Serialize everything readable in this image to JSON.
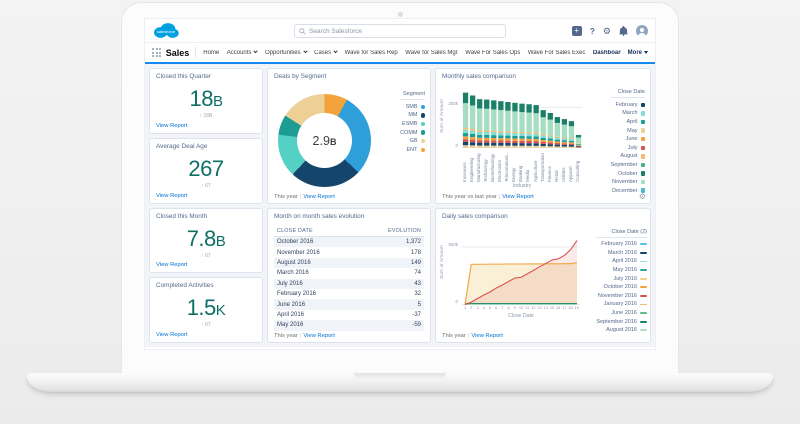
{
  "ui": {
    "sep": "|"
  },
  "header": {
    "logo_text": "salesforce",
    "search": {
      "placeholder": "Search Salesforce"
    },
    "icons": [
      "add",
      "help",
      "settings",
      "notifications",
      "avatar"
    ]
  },
  "nav": {
    "app_name": "Sales",
    "items": [
      {
        "label": "Home"
      },
      {
        "label": "Accounts",
        "caret": true
      },
      {
        "label": "Opportunities",
        "caret": true
      },
      {
        "label": "Cases",
        "caret": true
      },
      {
        "label": "Wave for Sales Rep"
      },
      {
        "label": "Wave for Sales Mgr"
      },
      {
        "label": "Wave For Sales Ops"
      },
      {
        "label": "Wave For Sales Exec"
      },
      {
        "label": "Dashboards",
        "caret": true,
        "active": true
      }
    ],
    "more_label": "More"
  },
  "kpi_cards": [
    {
      "title": "Closed this Quarter",
      "value": "18",
      "unit": "B",
      "delta": "16B",
      "link": "View Report"
    },
    {
      "title": "Average Deal Age",
      "value": "267",
      "unit": "",
      "delta": "67",
      "link": "View Report"
    },
    {
      "title": "Closed this Month",
      "value": "7.8",
      "unit": "B",
      "delta": "67",
      "link": "View Report"
    },
    {
      "title": "Completed Activities",
      "value": "1.5",
      "unit": "K",
      "delta": "67",
      "link": "View Report"
    }
  ],
  "donut_chart": {
    "type": "pie",
    "title": "Deals by Segment",
    "center_value": "2.9",
    "center_unit": "B",
    "legend_title": "Segment",
    "segments": [
      {
        "label": "ENT",
        "color": "#F2A33C",
        "pct": 8
      },
      {
        "label": "SMB",
        "color": "#2E9FD9",
        "pct": 29
      },
      {
        "label": "MM",
        "color": "#16456B",
        "pct": 25
      },
      {
        "label": "ESMB",
        "color": "#54D0C5",
        "pct": 15
      },
      {
        "label": "COMM",
        "color": "#1C9C92",
        "pct": 7
      },
      {
        "label": "GB",
        "color": "#EDD096",
        "pct": 16
      }
    ],
    "legend_order": [
      "SMB",
      "MM",
      "ESMB",
      "COMM",
      "GB",
      "ENT"
    ],
    "footer_scope": "This year",
    "footer_link": "View Report"
  },
  "evolution_table": {
    "type": "table",
    "title": "Month on month sales evolution",
    "columns": [
      "CLOSE DATE",
      "EVOLUTION"
    ],
    "rows": [
      [
        "October 2016",
        "1,372"
      ],
      [
        "November 2016",
        "178"
      ],
      [
        "August 2016",
        "149"
      ],
      [
        "March 2016",
        "74"
      ],
      [
        "July 2016",
        "43"
      ],
      [
        "February 2016",
        "32"
      ],
      [
        "June 2016",
        "5"
      ],
      [
        "April 2016",
        "-37"
      ],
      [
        "May 2016",
        "-59"
      ]
    ],
    "footer_scope": "This year",
    "footer_link": "View Report"
  },
  "monthly_chart": {
    "type": "bar",
    "title": "Monthly sales comparison",
    "ylabel": "Sum of Amount",
    "xlabel": "Industry",
    "y_ticks": [
      "200k",
      "0"
    ],
    "y_max_k": 285,
    "gridline_k": 200,
    "categories": [
      "Insurance",
      "Engineering",
      "Manufacturing",
      "Technology",
      "Biotechnology",
      "Electronics",
      "Telecommuni...",
      "Energy",
      "Banking",
      "Media",
      "Agriculture",
      "Transportation",
      "Finance",
      "Retail",
      "Utilities",
      "Apparel",
      "Consulting"
    ],
    "totals_k": [
      272,
      258,
      240,
      238,
      234,
      230,
      226,
      222,
      218,
      215,
      211,
      186,
      172,
      152,
      142,
      132,
      64
    ],
    "stack": [
      {
        "c": "#EDD096",
        "f": 0.05
      },
      {
        "c": "#16456B",
        "f": 0.06
      },
      {
        "c": "#D9534F",
        "f": 0.05
      },
      {
        "c": "#F2A33C",
        "f": 0.05
      },
      {
        "c": "#1C9C92",
        "f": 0.06
      },
      {
        "c": "#7FDFD6",
        "f": 0.06
      },
      {
        "c": "#F6B96B",
        "f": 0.03
      },
      {
        "c": "#A5DEC1",
        "f": 0.45
      },
      {
        "c": "#1B8068",
        "f": 0.19
      }
    ],
    "legend_title": "Close Date",
    "legend": [
      {
        "label": "February",
        "color": "#16456B"
      },
      {
        "label": "March",
        "color": "#7FDFD6"
      },
      {
        "label": "April",
        "color": "#1C9C92"
      },
      {
        "label": "May",
        "color": "#EDD096"
      },
      {
        "label": "June",
        "color": "#F2A33C"
      },
      {
        "label": "July",
        "color": "#D9534F"
      },
      {
        "label": "August",
        "color": "#F6B96B"
      },
      {
        "label": "September",
        "color": "#4CAF82"
      },
      {
        "label": "October",
        "color": "#1B8068"
      },
      {
        "label": "November",
        "color": "#A5DEC1"
      },
      {
        "label": "December",
        "color": "#49B9C9"
      }
    ],
    "footer_scope": "This year vs last year",
    "footer_link": "View Report"
  },
  "daily_chart": {
    "type": "line",
    "title": "Daily sales comparison",
    "ylabel": "Sum of Amount",
    "xlabel": "Close Date",
    "y_ticks": [
      "500k",
      "0"
    ],
    "y_max_k": 620,
    "gridline_k": 500,
    "x_ticks": [
      "1",
      "2",
      "3",
      "4",
      "5",
      "6",
      "7",
      "8",
      "9",
      "10",
      "11",
      "12",
      "13",
      "14",
      "15",
      "16",
      "17",
      "18",
      "19"
    ],
    "series": [
      {
        "name": "February 2016",
        "color": "#4FC3E8",
        "flat_k": 6
      },
      {
        "name": "March 2016",
        "color": "#16456B",
        "flat_k": 8
      },
      {
        "name": "April 2016",
        "color": "#8FE0D8",
        "flat_k": 5
      },
      {
        "name": "May 2016",
        "color": "#2BA89E",
        "flat_k": 12
      },
      {
        "name": "July 2016",
        "color": "#F0D18C",
        "flat_k": 15
      },
      {
        "name": "October 2016",
        "color": "#F2A33C",
        "fill": "rgba(240,209,140,0.35)",
        "values_k": [
          2,
          350,
          351,
          351,
          352,
          352,
          352,
          353,
          353,
          353,
          354,
          354,
          354,
          355,
          355,
          355,
          356,
          356,
          366
        ]
      },
      {
        "name": "November 2016",
        "color": "#D9534F",
        "fill": "rgba(217,83,79,0.12)",
        "values_k": [
          3,
          25,
          55,
          85,
          112,
          145,
          172,
          202,
          232,
          238,
          268,
          298,
          330,
          358,
          388,
          398,
          428,
          478,
          555
        ]
      },
      {
        "name": "January 2016",
        "color": "#F6B96B",
        "flat_k": 10
      },
      {
        "name": "June 2016",
        "color": "#5BBD8B",
        "flat_k": 9
      },
      {
        "name": "September 2016",
        "color": "#1C7F68",
        "flat_k": 14
      },
      {
        "name": "August 2016",
        "color": "#A8DFC2",
        "flat_k": 4
      }
    ],
    "legend_title": "Close Date (2)",
    "footer_scope": "This year",
    "footer_link": "View Report"
  }
}
